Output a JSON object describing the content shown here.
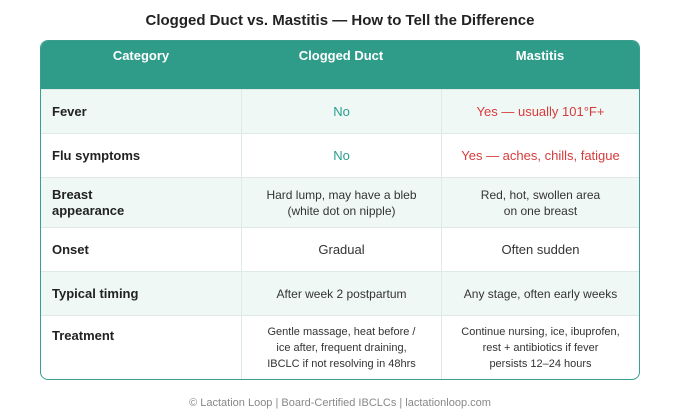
{
  "title": "Clogged Duct vs. Mastitis — How to Tell the Difference",
  "table": {
    "header": [
      "Category",
      "Clogged Duct",
      "Mastitis"
    ],
    "rows": [
      [
        [
          "Fever"
        ],
        [
          "No"
        ],
        [
          "Yes — usually 101°F+"
        ]
      ],
      [
        [
          "Flu symptoms"
        ],
        [
          "No"
        ],
        [
          "Yes — aches, chills, fatigue"
        ]
      ],
      [
        [
          "Breast",
          "appearance"
        ],
        [
          "Hard lump, may have a bleb",
          "(white dot on nipple)"
        ],
        [
          "Red, hot, swollen area",
          "on one breast"
        ]
      ],
      [
        [
          "Onset"
        ],
        [
          "Gradual"
        ],
        [
          "Often sudden"
        ]
      ],
      [
        [
          "Typical timing"
        ],
        [
          "After week 2 postpartum"
        ],
        [
          "Any stage, often early weeks"
        ]
      ],
      [
        [
          "Treatment"
        ],
        [
          "Gentle massage, heat before /",
          "ice after, frequent draining,",
          "IBCLC if not resolving in 48hrs"
        ],
        [
          "Continue nursing, ice, ibuprofen,",
          "rest + antibiotics if fever",
          "persists 12–24 hours"
        ]
      ]
    ]
  },
  "footer": "© Lactation Loop | Board-Certified IBCLCs | lactationloop.com"
}
